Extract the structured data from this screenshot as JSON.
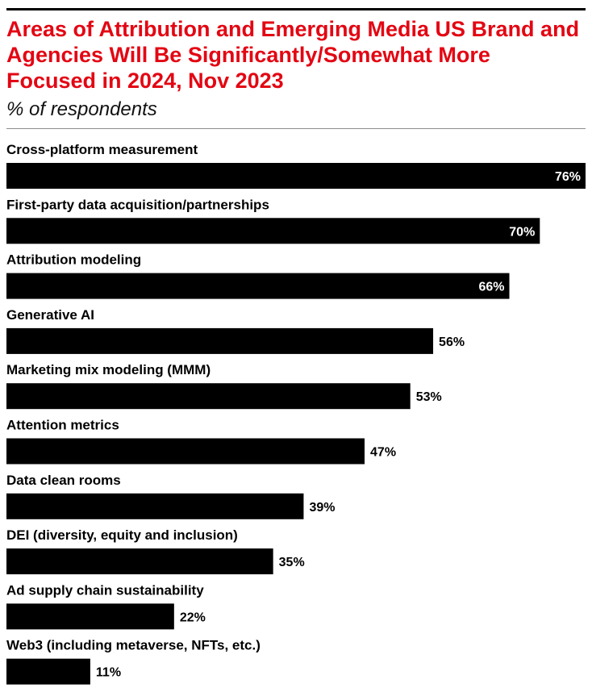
{
  "chart_data": {
    "type": "bar",
    "orientation": "horizontal",
    "title": "Areas of Attribution and Emerging Media US Brand and Agencies Will Be Significantly/Somewhat More Focused in 2024, Nov 2023",
    "subtitle": "% of respondents",
    "categories": [
      "Cross-platform measurement",
      "First-party data acquisition/partnerships",
      "Attribution modeling",
      "Generative AI",
      "Marketing mix modeling (MMM)",
      "Attention metrics",
      "Data clean rooms",
      "DEI (diversity, equity and inclusion)",
      "Ad supply chain sustainability",
      "Web3 (including metaverse, NFTs, etc.)"
    ],
    "values": [
      76,
      70,
      66,
      56,
      53,
      47,
      39,
      35,
      22,
      11
    ],
    "value_labels": [
      "76%",
      "70%",
      "66%",
      "56%",
      "53%",
      "47%",
      "39%",
      "35%",
      "22%",
      "11%"
    ],
    "xlim": [
      0,
      76
    ],
    "grid": false,
    "bar_color": "#000000",
    "title_color": "#e30613"
  }
}
